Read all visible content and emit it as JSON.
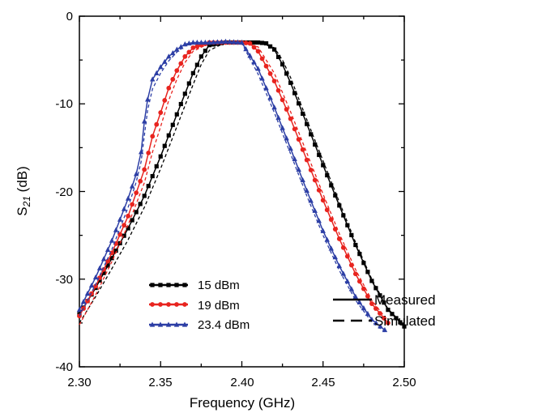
{
  "chart_data": {
    "type": "line",
    "xlabel": "Frequency (GHz)",
    "ylabel": {
      "base": "S",
      "sub": "21",
      "unit": " (dB)"
    },
    "xlim": [
      2.3,
      2.5
    ],
    "ylim": [
      -40,
      0
    ],
    "xticks": [
      "2.30",
      "2.35",
      "2.40",
      "2.45",
      "2.50"
    ],
    "yticks": [
      "0",
      "-10",
      "-20",
      "-30",
      "-40"
    ],
    "grid": false,
    "series": [
      {
        "name": "15 dBm",
        "color": "#000000",
        "marker": "square",
        "measured": [
          [
            2.3,
            -34.0
          ],
          [
            2.31,
            -31.0
          ],
          [
            2.32,
            -27.6
          ],
          [
            2.33,
            -24.2
          ],
          [
            2.34,
            -20.5
          ],
          [
            2.35,
            -16.0
          ],
          [
            2.36,
            -11.2
          ],
          [
            2.37,
            -6.5
          ],
          [
            2.375,
            -4.6
          ],
          [
            2.38,
            -3.3
          ],
          [
            2.39,
            -3.0
          ],
          [
            2.4,
            -3.0
          ],
          [
            2.41,
            -3.0
          ],
          [
            2.415,
            -3.1
          ],
          [
            2.42,
            -3.8
          ],
          [
            2.425,
            -5.5
          ],
          [
            2.43,
            -7.6
          ],
          [
            2.44,
            -12.3
          ],
          [
            2.45,
            -17.0
          ],
          [
            2.46,
            -21.6
          ],
          [
            2.47,
            -26.1
          ],
          [
            2.48,
            -30.2
          ],
          [
            2.49,
            -33.5
          ],
          [
            2.5,
            -35.4
          ]
        ],
        "simulated": [
          [
            2.3,
            -35.0
          ],
          [
            2.31,
            -32.0
          ],
          [
            2.32,
            -28.8
          ],
          [
            2.33,
            -25.5
          ],
          [
            2.34,
            -21.8
          ],
          [
            2.35,
            -17.4
          ],
          [
            2.36,
            -12.6
          ],
          [
            2.37,
            -7.8
          ],
          [
            2.375,
            -5.5
          ],
          [
            2.38,
            -3.9
          ],
          [
            2.39,
            -3.0
          ],
          [
            2.4,
            -3.0
          ],
          [
            2.41,
            -3.0
          ],
          [
            2.42,
            -3.6
          ],
          [
            2.425,
            -5.0
          ],
          [
            2.43,
            -7.0
          ],
          [
            2.44,
            -11.8
          ],
          [
            2.45,
            -16.5
          ],
          [
            2.46,
            -21.2
          ],
          [
            2.47,
            -25.8
          ],
          [
            2.48,
            -30.0
          ],
          [
            2.49,
            -33.4
          ],
          [
            2.5,
            -35.3
          ]
        ]
      },
      {
        "name": "19 dBm",
        "color": "#e8241f",
        "marker": "circle",
        "measured": [
          [
            2.3,
            -34.2
          ],
          [
            2.31,
            -30.8
          ],
          [
            2.32,
            -27.0
          ],
          [
            2.33,
            -22.8
          ],
          [
            2.34,
            -17.5
          ],
          [
            2.345,
            -13.7
          ],
          [
            2.35,
            -11.0
          ],
          [
            2.355,
            -8.2
          ],
          [
            2.36,
            -6.2
          ],
          [
            2.365,
            -4.6
          ],
          [
            2.37,
            -3.6
          ],
          [
            2.38,
            -3.0
          ],
          [
            2.39,
            -3.0
          ],
          [
            2.4,
            -3.0
          ],
          [
            2.405,
            -3.1
          ],
          [
            2.41,
            -4.0
          ],
          [
            2.42,
            -7.4
          ],
          [
            2.43,
            -11.7
          ],
          [
            2.44,
            -16.4
          ],
          [
            2.45,
            -21.0
          ],
          [
            2.46,
            -25.4
          ],
          [
            2.47,
            -29.4
          ],
          [
            2.48,
            -32.8
          ],
          [
            2.49,
            -35.0
          ]
        ],
        "simulated": [
          [
            2.3,
            -35.2
          ],
          [
            2.31,
            -31.8
          ],
          [
            2.32,
            -28.0
          ],
          [
            2.33,
            -23.8
          ],
          [
            2.34,
            -19.0
          ],
          [
            2.345,
            -15.5
          ],
          [
            2.35,
            -12.6
          ],
          [
            2.355,
            -9.6
          ],
          [
            2.36,
            -7.2
          ],
          [
            2.365,
            -5.3
          ],
          [
            2.37,
            -4.0
          ],
          [
            2.38,
            -3.1
          ],
          [
            2.39,
            -3.0
          ],
          [
            2.4,
            -3.0
          ],
          [
            2.41,
            -3.5
          ],
          [
            2.42,
            -6.5
          ],
          [
            2.43,
            -10.9
          ],
          [
            2.44,
            -15.6
          ],
          [
            2.45,
            -20.3
          ],
          [
            2.46,
            -24.8
          ],
          [
            2.47,
            -28.9
          ],
          [
            2.48,
            -32.4
          ],
          [
            2.49,
            -34.8
          ]
        ]
      },
      {
        "name": "23.4 dBm",
        "color": "#2c3ea5",
        "marker": "triangle",
        "measured": [
          [
            2.3,
            -33.5
          ],
          [
            2.31,
            -29.8
          ],
          [
            2.32,
            -25.6
          ],
          [
            2.33,
            -20.8
          ],
          [
            2.335,
            -18.0
          ],
          [
            2.338,
            -15.5
          ],
          [
            2.34,
            -12.0
          ],
          [
            2.342,
            -9.5
          ],
          [
            2.345,
            -7.2
          ],
          [
            2.35,
            -5.8
          ],
          [
            2.355,
            -4.6
          ],
          [
            2.36,
            -3.8
          ],
          [
            2.365,
            -3.2
          ],
          [
            2.37,
            -3.0
          ],
          [
            2.38,
            -3.0
          ],
          [
            2.39,
            -2.9
          ],
          [
            2.4,
            -3.0
          ],
          [
            2.41,
            -6.0
          ],
          [
            2.42,
            -10.4
          ],
          [
            2.43,
            -15.1
          ],
          [
            2.44,
            -19.9
          ],
          [
            2.45,
            -24.5
          ],
          [
            2.46,
            -28.5
          ],
          [
            2.47,
            -32.0
          ],
          [
            2.48,
            -34.6
          ],
          [
            2.488,
            -35.8
          ]
        ],
        "simulated": [
          [
            2.3,
            -34.2
          ],
          [
            2.31,
            -30.6
          ],
          [
            2.32,
            -26.6
          ],
          [
            2.33,
            -21.8
          ],
          [
            2.335,
            -18.9
          ],
          [
            2.338,
            -16.6
          ],
          [
            2.34,
            -13.6
          ],
          [
            2.342,
            -10.7
          ],
          [
            2.345,
            -8.3
          ],
          [
            2.35,
            -6.5
          ],
          [
            2.355,
            -5.1
          ],
          [
            2.36,
            -4.1
          ],
          [
            2.365,
            -3.4
          ],
          [
            2.37,
            -3.0
          ],
          [
            2.38,
            -3.0
          ],
          [
            2.39,
            -2.9
          ],
          [
            2.4,
            -3.1
          ],
          [
            2.41,
            -6.6
          ],
          [
            2.42,
            -11.0
          ],
          [
            2.43,
            -15.7
          ],
          [
            2.44,
            -20.5
          ],
          [
            2.45,
            -25.0
          ],
          [
            2.46,
            -29.0
          ],
          [
            2.47,
            -32.4
          ],
          [
            2.48,
            -34.9
          ],
          [
            2.488,
            -36.0
          ]
        ]
      }
    ],
    "line_styles": [
      {
        "label": "Measured",
        "dash": "solid"
      },
      {
        "label": "Simulated",
        "dash": "dashed"
      }
    ]
  }
}
